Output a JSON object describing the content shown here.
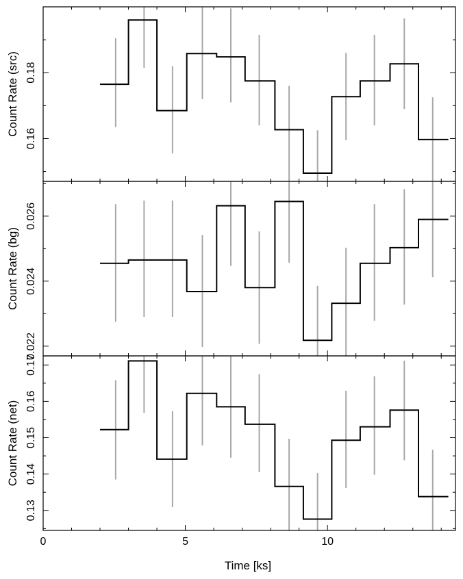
{
  "chart_data": [
    {
      "type": "line",
      "panel": "src",
      "ylabel": "Count Rate (src)",
      "xlim": [
        0,
        14.5
      ],
      "ylim": [
        0.147,
        0.2
      ],
      "yticks": [
        "0.16",
        "0.18"
      ],
      "ytick_values": [
        0.16,
        0.18
      ],
      "grid": false,
      "series": [
        {
          "style": "step",
          "bins": [
            [
              2.0,
              3.0,
              0.1765
            ],
            [
              3.0,
              4.0,
              0.196
            ],
            [
              4.0,
              5.05,
              0.1685
            ],
            [
              5.05,
              6.1,
              0.1858
            ],
            [
              6.1,
              7.1,
              0.1848
            ],
            [
              7.1,
              8.15,
              0.1775
            ],
            [
              8.15,
              9.15,
              0.1627
            ],
            [
              9.15,
              10.15,
              0.1495
            ],
            [
              10.15,
              11.15,
              0.1727
            ],
            [
              11.15,
              12.2,
              0.1775
            ],
            [
              12.2,
              13.2,
              0.1827
            ],
            [
              13.2,
              14.25,
              0.1597
            ]
          ]
        },
        {
          "style": "errorbar",
          "points": [
            [
              2.55,
              0.1635,
              0.1905
            ],
            [
              3.55,
              0.1815,
              0.2
            ],
            [
              4.55,
              0.1555,
              0.182
            ],
            [
              5.6,
              0.172,
              0.2
            ],
            [
              6.6,
              0.171,
              0.1995
            ],
            [
              7.6,
              0.164,
              0.1915
            ],
            [
              8.65,
              0.147,
              0.176
            ],
            [
              9.65,
              0.147,
              0.1625
            ],
            [
              10.65,
              0.1595,
              0.186
            ],
            [
              11.65,
              0.164,
              0.1915
            ],
            [
              12.7,
              0.169,
              0.1965
            ],
            [
              13.7,
              0.147,
              0.1725
            ]
          ]
        }
      ]
    },
    {
      "type": "line",
      "panel": "bg",
      "ylabel": "Count Rate (bg)",
      "xlim": [
        0,
        14.5
      ],
      "ylim": [
        0.0217,
        0.02707
      ],
      "yticks": [
        "0.022",
        "0.024",
        "0.026"
      ],
      "ytick_values": [
        0.022,
        0.024,
        0.026
      ],
      "grid": false,
      "series": [
        {
          "style": "step",
          "bins": [
            [
              2.0,
              3.0,
              0.02455
            ],
            [
              3.0,
              4.0,
              0.02465
            ],
            [
              4.0,
              5.05,
              0.02465
            ],
            [
              5.05,
              6.1,
              0.02368
            ],
            [
              6.1,
              7.1,
              0.02632
            ],
            [
              7.1,
              8.15,
              0.0238
            ],
            [
              8.15,
              9.15,
              0.02645
            ],
            [
              9.15,
              10.15,
              0.02218
            ],
            [
              10.15,
              11.15,
              0.02332
            ],
            [
              11.15,
              12.2,
              0.02455
            ],
            [
              12.2,
              13.2,
              0.02503
            ],
            [
              13.2,
              14.25,
              0.0259
            ]
          ]
        },
        {
          "style": "errorbar",
          "points": [
            [
              2.55,
              0.02275,
              0.02637
            ],
            [
              3.55,
              0.0229,
              0.02648
            ],
            [
              4.55,
              0.0229,
              0.02648
            ],
            [
              5.6,
              0.02197,
              0.02542
            ],
            [
              6.6,
              0.02447,
              0.02707
            ],
            [
              7.6,
              0.02207,
              0.02553
            ],
            [
              8.65,
              0.02457,
              0.02707
            ],
            [
              9.65,
              0.0217,
              0.02385
            ],
            [
              10.65,
              0.0217,
              0.02503
            ],
            [
              11.65,
              0.02278,
              0.02637
            ],
            [
              12.7,
              0.02328,
              0.02683
            ],
            [
              13.7,
              0.02412,
              0.02707
            ]
          ]
        }
      ]
    },
    {
      "type": "line",
      "panel": "net",
      "ylabel": "Count Rate (net)",
      "xlabel": "Time [ks]",
      "xlim": [
        0,
        14.5
      ],
      "xticks": [
        "0",
        "5",
        "10"
      ],
      "xtick_values": [
        0,
        5,
        10
      ],
      "ylim": [
        0.1245,
        0.1725
      ],
      "yticks": [
        "0.13",
        "0.14",
        "0.15",
        "0.16",
        "0.17"
      ],
      "ytick_values": [
        0.13,
        0.14,
        0.15,
        0.16,
        0.17
      ],
      "grid": false,
      "series": [
        {
          "style": "step",
          "bins": [
            [
              2.0,
              3.0,
              0.1522
            ],
            [
              3.0,
              4.0,
              0.1711
            ],
            [
              4.0,
              5.05,
              0.1441
            ],
            [
              5.05,
              6.1,
              0.1622
            ],
            [
              6.1,
              7.1,
              0.1585
            ],
            [
              7.1,
              8.15,
              0.1537
            ],
            [
              8.15,
              9.15,
              0.1366
            ],
            [
              9.15,
              10.15,
              0.1276
            ],
            [
              10.15,
              11.15,
              0.1493
            ],
            [
              11.15,
              12.2,
              0.153
            ],
            [
              12.2,
              13.2,
              0.1576
            ],
            [
              13.2,
              14.25,
              0.1338
            ]
          ]
        },
        {
          "style": "errorbar",
          "points": [
            [
              2.55,
              0.1385,
              0.1658
            ],
            [
              3.55,
              0.1568,
              0.1725
            ],
            [
              4.55,
              0.1309,
              0.1573
            ],
            [
              5.6,
              0.1479,
              0.1725
            ],
            [
              6.6,
              0.1445,
              0.1725
            ],
            [
              7.6,
              0.1405,
              0.1675
            ],
            [
              8.65,
              0.1245,
              0.1497
            ],
            [
              9.65,
              0.1245,
              0.1403
            ],
            [
              10.65,
              0.1362,
              0.1629
            ],
            [
              11.65,
              0.1398,
              0.1669
            ],
            [
              12.7,
              0.1438,
              0.1712
            ],
            [
              13.7,
              0.1245,
              0.1467
            ]
          ]
        }
      ]
    }
  ],
  "colors": {
    "step": "#000000",
    "errorbar": "#a8a8a8",
    "axes": "#000000"
  }
}
